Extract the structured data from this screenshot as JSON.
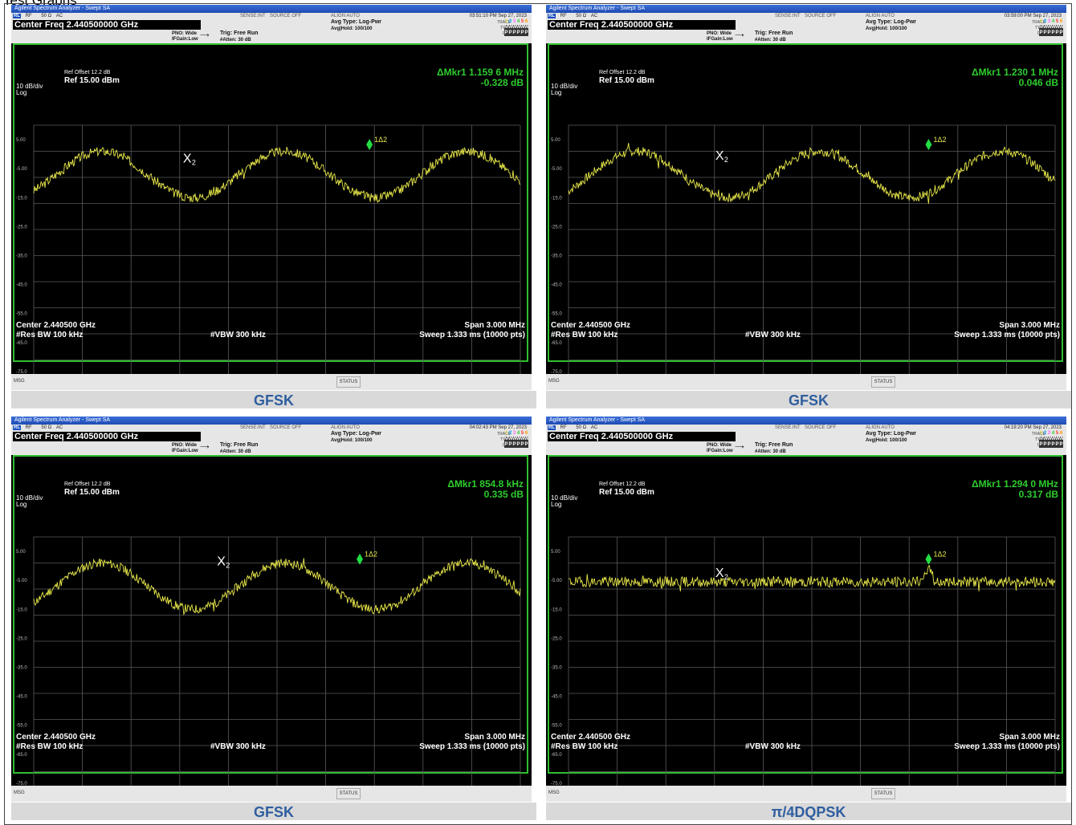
{
  "doc_title": "Test Graphs",
  "panels": [
    {
      "window_title": "Agilent Spectrum Analyzer - Swept SA",
      "rl": "RL",
      "rf": "RF",
      "ohm": "50 Ω",
      "ac": "AC",
      "sense": "SENSE:INT",
      "source": "SOURCE OFF",
      "align": "ALIGN AUTO",
      "timestamp": "03:51:10 PM Sep 27, 2023",
      "center_freq": "Center Freq 2.440500000 GHz",
      "pno": "PNO: Wide",
      "ifgain": "IFGain:Low",
      "trig": "Trig: Free Run",
      "atten": "#Atten: 30 dB",
      "avg_type": "Avg Type: Log-Pwr",
      "avg_hold": "Avg|Hold: 100/100",
      "trace_label": "TRACE",
      "type_label": "TYPE",
      "det_label": "DET",
      "trace_row": "1 2 3 4 5 6",
      "type_row": "M W W W W W",
      "det_row": "P P P P P P",
      "ref_offset": "Ref Offset 12.2 dB",
      "ref_level": "Ref 15.00 dBm",
      "scale": "10 dB/div",
      "log": "Log",
      "marker_freq": "ΔMkr1 1.159 6 MHz",
      "marker_val": "-0.328 dB",
      "y_ticks": [
        "5.00",
        "-5.00",
        "-15.0",
        "-25.0",
        "-35.0",
        "-45.0",
        "-55.0",
        "-65.0",
        "-75.0"
      ],
      "marker_a_label": "X",
      "marker_a_sub": "2",
      "marker_b_label": "1Δ2",
      "center": "Center 2.440500 GHz",
      "span": "Span 3.000 MHz",
      "rbw": "#Res BW 100 kHz",
      "vbw": "#VBW 300 kHz",
      "sweep": "Sweep  1.333 ms (10000 pts)",
      "msg": "MSG",
      "status": "STATUS",
      "caption": "GFSK",
      "wave": "gfsk",
      "seed": 3,
      "marker_a_x": 0.315,
      "marker_b_x": 0.69,
      "marker_a_level": -4.0,
      "marker_b_level": 0.0
    },
    {
      "window_title": "Agilent Spectrum Analyzer - Swept SA",
      "rl": "RL",
      "rf": "RF",
      "ohm": "50 Ω",
      "ac": "AC",
      "sense": "SENSE:INT",
      "source": "SOURCE OFF",
      "align": "ALIGN AUTO",
      "timestamp": "03:59:00 PM Sep 27, 2023",
      "center_freq": "Center Freq 2.440500000 GHz",
      "pno": "PNO: Wide",
      "ifgain": "IFGain:Low",
      "trig": "Trig: Free Run",
      "atten": "#Atten: 30 dB",
      "avg_type": "Avg Type: Log-Pwr",
      "avg_hold": "Avg|Hold: 100/100",
      "trace_label": "TRACE",
      "type_label": "TYPE",
      "det_label": "DET",
      "trace_row": "1 2 3 4 5 6",
      "type_row": "M W W W W W",
      "det_row": "P P P P P P",
      "ref_offset": "Ref Offset 12.2 dB",
      "ref_level": "Ref 15.00 dBm",
      "scale": "10 dB/div",
      "log": "Log",
      "marker_freq": "ΔMkr1 1.230 1 MHz",
      "marker_val": "0.046 dB",
      "y_ticks": [
        "5.00",
        "-5.00",
        "-15.0",
        "-25.0",
        "-35.0",
        "-45.0",
        "-55.0",
        "-65.0",
        "-75.0"
      ],
      "marker_a_label": "X",
      "marker_a_sub": "2",
      "marker_b_label": "1Δ2",
      "center": "Center 2.440500 GHz",
      "span": "Span 3.000 MHz",
      "rbw": "#Res BW 100 kHz",
      "vbw": "#VBW 300 kHz",
      "sweep": "Sweep  1.333 ms (10000 pts)",
      "msg": "MSG",
      "status": "STATUS",
      "caption": "GFSK",
      "wave": "gfsk",
      "seed": 7,
      "marker_a_x": 0.31,
      "marker_b_x": 0.74,
      "marker_a_level": -3.0,
      "marker_b_level": 0.0
    },
    {
      "window_title": "Agilent Spectrum Analyzer - Swept SA",
      "rl": "RL",
      "rf": "RF",
      "ohm": "50 Ω",
      "ac": "AC",
      "sense": "SENSE:INT",
      "source": "SOURCE OFF",
      "align": "ALIGN AUTO",
      "timestamp": "04:02:43 PM Sep 27, 2023",
      "center_freq": "Center Freq 2.440500000 GHz",
      "pno": "PNO: Wide",
      "ifgain": "IFGain:Low",
      "trig": "Trig: Free Run",
      "atten": "#Atten: 30 dB",
      "avg_type": "Avg Type: Log-Pwr",
      "avg_hold": "Avg|Hold: 100/100",
      "trace_label": "TRACE",
      "type_label": "TYPE",
      "det_label": "DET",
      "trace_row": "1 2 3 4 5 6",
      "type_row": "M W W W W W",
      "det_row": "P P P P P P",
      "ref_offset": "Ref Offset 12.2 dB",
      "ref_level": "Ref 15.00 dBm",
      "scale": "10 dB/div",
      "log": "Log",
      "marker_freq": "ΔMkr1 854.8 kHz",
      "marker_val": "0.335 dB",
      "y_ticks": [
        "5.00",
        "-5.00",
        "-15.0",
        "-25.0",
        "-35.0",
        "-45.0",
        "-55.0",
        "-65.0",
        "-75.0"
      ],
      "marker_a_label": "X",
      "marker_a_sub": "2",
      "marker_b_label": "1Δ2",
      "center": "Center 2.440500 GHz",
      "span": "Span 3.000 MHz",
      "rbw": "#Res BW 100 kHz",
      "vbw": "#VBW 300 kHz",
      "sweep": "Sweep  1.333 ms (10000 pts)",
      "msg": "MSG",
      "status": "STATUS",
      "caption": "GFSK",
      "wave": "gfsk",
      "seed": 11,
      "marker_a_x": 0.385,
      "marker_b_x": 0.67,
      "marker_a_level": -1.0,
      "marker_b_level": -1.0
    },
    {
      "window_title": "Agilent Spectrum Analyzer - Swept SA",
      "rl": "RL",
      "rf": "RF",
      "ohm": "50 Ω",
      "ac": "AC",
      "sense": "SENSE:INT",
      "source": "SOURCE OFF",
      "align": "ALIGN AUTO",
      "timestamp": "04:19:20 PM Sep 27, 2023",
      "center_freq": "Center Freq 2.440500000 GHz",
      "pno": "PNO: Wide",
      "ifgain": "IFGain:Low",
      "trig": "Trig: Free Run",
      "atten": "#Atten: 30 dB",
      "avg_type": "Avg Type: Log-Pwr",
      "avg_hold": "Avg|Hold: 100/100",
      "trace_label": "TRACE",
      "type_label": "TYPE",
      "det_label": "DET",
      "trace_row": "1 2 3 4 5 6",
      "type_row": "M W W W W W",
      "det_row": "P P P P P P",
      "ref_offset": "Ref Offset 12.2 dB",
      "ref_level": "Ref 15.00 dBm",
      "scale": "10 dB/div",
      "log": "Log",
      "marker_freq": "ΔMkr1 1.294 0 MHz",
      "marker_val": "0.317 dB",
      "y_ticks": [
        "5.00",
        "-5.00",
        "-15.0",
        "-25.0",
        "-35.0",
        "-45.0",
        "-55.0",
        "-65.0",
        "-75.0"
      ],
      "marker_a_label": "X",
      "marker_a_sub": "2",
      "marker_b_label": "1Δ2",
      "center": "Center 2.440500 GHz",
      "span": "Span 3.000 MHz",
      "rbw": "#Res BW 100 kHz",
      "vbw": "#VBW 300 kHz",
      "sweep": "Sweep  1.333 ms (10000 pts)",
      "msg": "MSG",
      "status": "STATUS",
      "caption": "π/4DQPSK",
      "wave": "dqpsk",
      "seed": 19,
      "marker_a_x": 0.31,
      "marker_b_x": 0.74,
      "marker_a_level": -5.0,
      "marker_b_level": -1.0
    }
  ],
  "colors": {
    "trace": "#e8e84a",
    "grid": "#5a5a5a",
    "marker_b": "#22dd44",
    "border": "#2fbf2f",
    "caption": "#2e5e9e"
  }
}
